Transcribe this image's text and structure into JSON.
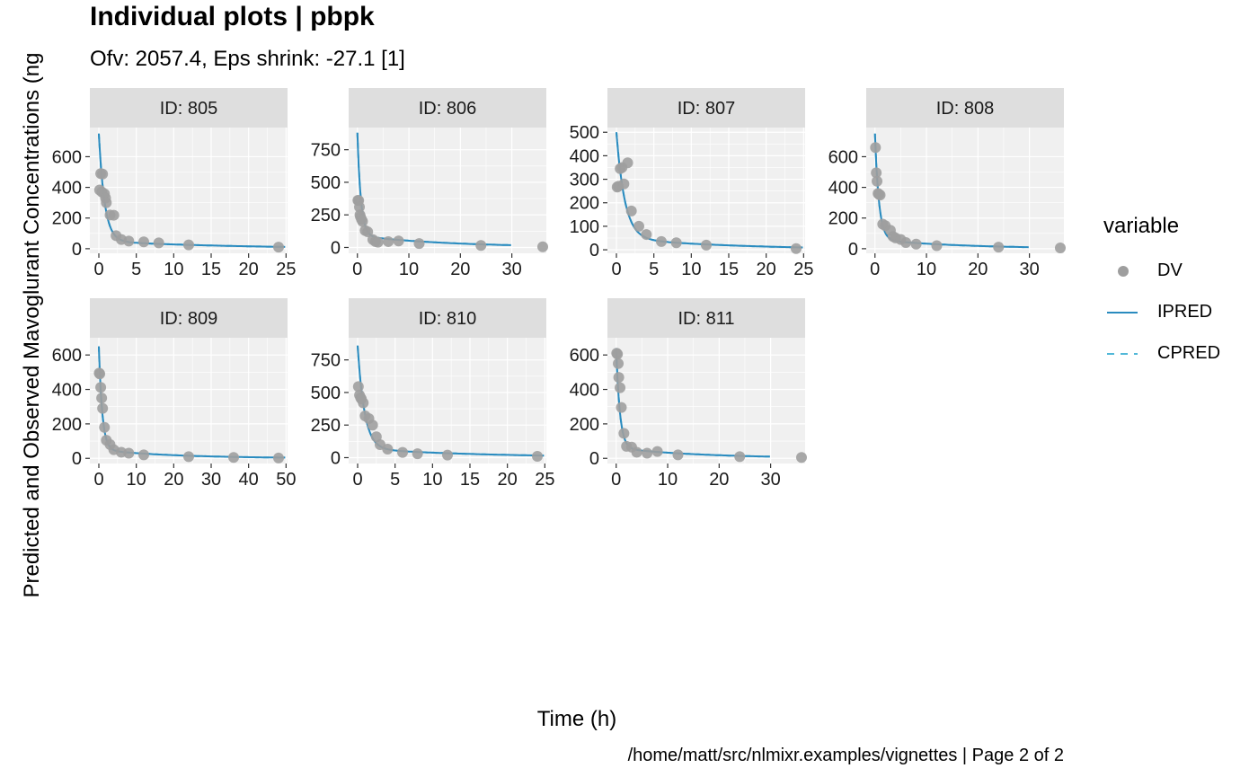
{
  "title": "Individual plots | pbpk",
  "subtitle": "Ofv: 2057.4, Eps shrink: -27.1 [1]",
  "caption": "/home/matt/src/nlmixr.examples/vignettes | Page 2 of 2",
  "colors": {
    "panel_bg": "#f0f0f0",
    "strip_bg": "#dedede",
    "grid": "#ffffff",
    "dv": "#9e9e9e",
    "ipred": "#2a8bbf",
    "cpred": "#52b8d8"
  },
  "chart_data": {
    "type": "scatter",
    "title": "Individual plots | pbpk",
    "subtitle": "Ofv: 2057.4, Eps shrink: -27.1 [1]",
    "xlabel": "Time (h)",
    "ylabel": "Predicted and Observed Mavoglurant Concentrations (ng",
    "legend": {
      "title": "variable",
      "placement": "right",
      "entries": [
        {
          "name": "DV",
          "kind": "point"
        },
        {
          "name": "IPRED",
          "kind": "solid-line"
        },
        {
          "name": "CPRED",
          "kind": "dashed-line"
        }
      ]
    },
    "grid": true,
    "panels": [
      {
        "label": "ID: 805",
        "xlim": [
          -1.2,
          25.2
        ],
        "ylim": [
          -30,
          790
        ],
        "xticks": [
          0,
          5,
          10,
          15,
          20,
          25
        ],
        "yticks": [
          0,
          200,
          400,
          600
        ],
        "dv": [
          [
            0.25,
            490
          ],
          [
            0.5,
            487
          ],
          [
            0.1,
            383
          ],
          [
            0.4,
            370
          ],
          [
            0.75,
            358
          ],
          [
            0.9,
            330
          ],
          [
            1,
            300
          ],
          [
            1.5,
            220
          ],
          [
            2,
            218
          ],
          [
            2.3,
            85
          ],
          [
            3,
            60
          ],
          [
            4,
            50
          ],
          [
            6,
            45
          ],
          [
            8,
            38
          ],
          [
            12,
            25
          ],
          [
            24,
            10
          ]
        ],
        "pred_cmax": 750,
        "pred_k": 1.3,
        "pred_tail": [
          50,
          0.058
        ]
      },
      {
        "label": "ID: 806",
        "xlim": [
          -1.7,
          36.7
        ],
        "ylim": [
          -45,
          920
        ],
        "xticks": [
          0,
          10,
          20,
          30
        ],
        "yticks": [
          0,
          250,
          500,
          750
        ],
        "dv": [
          [
            0.1,
            362
          ],
          [
            0.25,
            360
          ],
          [
            0.4,
            310
          ],
          [
            0.5,
            250
          ],
          [
            0.6,
            235
          ],
          [
            0.8,
            215
          ],
          [
            1,
            200
          ],
          [
            1.5,
            130
          ],
          [
            2,
            120
          ],
          [
            3,
            60
          ],
          [
            3.5,
            45
          ],
          [
            4,
            40
          ],
          [
            6,
            45
          ],
          [
            8,
            50
          ],
          [
            12,
            30
          ],
          [
            24,
            15
          ],
          [
            36,
            5
          ]
        ],
        "pred_cmax": 880,
        "pred_k": 1.5,
        "pred_tail": [
          90,
          0.055
        ]
      },
      {
        "label": "ID: 807",
        "xlim": [
          -1.2,
          25.2
        ],
        "ylim": [
          -15,
          520
        ],
        "xticks": [
          0,
          5,
          10,
          15,
          20,
          25
        ],
        "yticks": [
          0,
          100,
          200,
          300,
          400,
          500
        ],
        "dv": [
          [
            0.1,
            267
          ],
          [
            0.25,
            270
          ],
          [
            0.5,
            345
          ],
          [
            0.75,
            350
          ],
          [
            1,
            280
          ],
          [
            1.5,
            370
          ],
          [
            2,
            165
          ],
          [
            3,
            100
          ],
          [
            4,
            65
          ],
          [
            6,
            35
          ],
          [
            8,
            30
          ],
          [
            12,
            20
          ],
          [
            24,
            5
          ]
        ],
        "pred_cmax": 500,
        "pred_k": 0.9,
        "pred_tail": [
          50,
          0.065
        ]
      },
      {
        "label": "ID: 808",
        "xlim": [
          -1.7,
          36.7
        ],
        "ylim": [
          -30,
          790
        ],
        "xticks": [
          0,
          10,
          20,
          30
        ],
        "yticks": [
          0,
          200,
          400,
          600
        ],
        "dv": [
          [
            0.1,
            660
          ],
          [
            0.25,
            495
          ],
          [
            0.4,
            440
          ],
          [
            0.6,
            360
          ],
          [
            0.75,
            355
          ],
          [
            1,
            350
          ],
          [
            1.5,
            160
          ],
          [
            2,
            150
          ],
          [
            3,
            120
          ],
          [
            3.5,
            80
          ],
          [
            4,
            70
          ],
          [
            5,
            60
          ],
          [
            6,
            40
          ],
          [
            8,
            30
          ],
          [
            12,
            20
          ],
          [
            24,
            10
          ],
          [
            36,
            5
          ]
        ],
        "pred_cmax": 750,
        "pred_k": 1.3,
        "pred_tail": [
          60,
          0.06
        ]
      },
      {
        "label": "ID: 809",
        "xlim": [
          -2.4,
          50.4
        ],
        "ylim": [
          -30,
          700
        ],
        "xticks": [
          0,
          10,
          20,
          30,
          40,
          50
        ],
        "yticks": [
          0,
          200,
          400,
          600
        ],
        "dv": [
          [
            0.1,
            495
          ],
          [
            0.25,
            490
          ],
          [
            0.5,
            412
          ],
          [
            0.75,
            350
          ],
          [
            1,
            290
          ],
          [
            1.5,
            180
          ],
          [
            2,
            105
          ],
          [
            3,
            80
          ],
          [
            4,
            50
          ],
          [
            6,
            35
          ],
          [
            8,
            30
          ],
          [
            12,
            20
          ],
          [
            24,
            10
          ],
          [
            36,
            5
          ],
          [
            48,
            2
          ]
        ],
        "pred_cmax": 650,
        "pred_k": 1.1,
        "pred_tail": [
          50,
          0.05
        ]
      },
      {
        "label": "ID: 810",
        "xlim": [
          -1.2,
          25.2
        ],
        "ylim": [
          -45,
          920
        ],
        "xticks": [
          0,
          5,
          10,
          15,
          20,
          25
        ],
        "yticks": [
          0,
          250,
          500,
          750
        ],
        "dv": [
          [
            0.1,
            545
          ],
          [
            0.25,
            480
          ],
          [
            0.4,
            460
          ],
          [
            0.5,
            450
          ],
          [
            0.75,
            420
          ],
          [
            1,
            320
          ],
          [
            1.5,
            300
          ],
          [
            2,
            250
          ],
          [
            2.5,
            160
          ],
          [
            3,
            100
          ],
          [
            4,
            65
          ],
          [
            6,
            40
          ],
          [
            8,
            30
          ],
          [
            12,
            20
          ],
          [
            24,
            10
          ]
        ],
        "pred_cmax": 860,
        "pred_k": 1.1,
        "pred_tail": [
          70,
          0.06
        ]
      },
      {
        "label": "ID: 811",
        "xlim": [
          -1.7,
          36.7
        ],
        "ylim": [
          -30,
          700
        ],
        "xticks": [
          0,
          10,
          20,
          30
        ],
        "yticks": [
          0,
          200,
          400,
          600
        ],
        "dv": [
          [
            0.1,
            610
          ],
          [
            0.25,
            605
          ],
          [
            0.4,
            550
          ],
          [
            0.5,
            470
          ],
          [
            0.75,
            410
          ],
          [
            1,
            295
          ],
          [
            1.5,
            145
          ],
          [
            2,
            70
          ],
          [
            3,
            65
          ],
          [
            4,
            35
          ],
          [
            6,
            30
          ],
          [
            8,
            40
          ],
          [
            12,
            20
          ],
          [
            24,
            10
          ],
          [
            36,
            5
          ]
        ],
        "pred_cmax": 640,
        "pred_k": 1.4,
        "pred_tail": [
          60,
          0.06
        ]
      }
    ]
  }
}
